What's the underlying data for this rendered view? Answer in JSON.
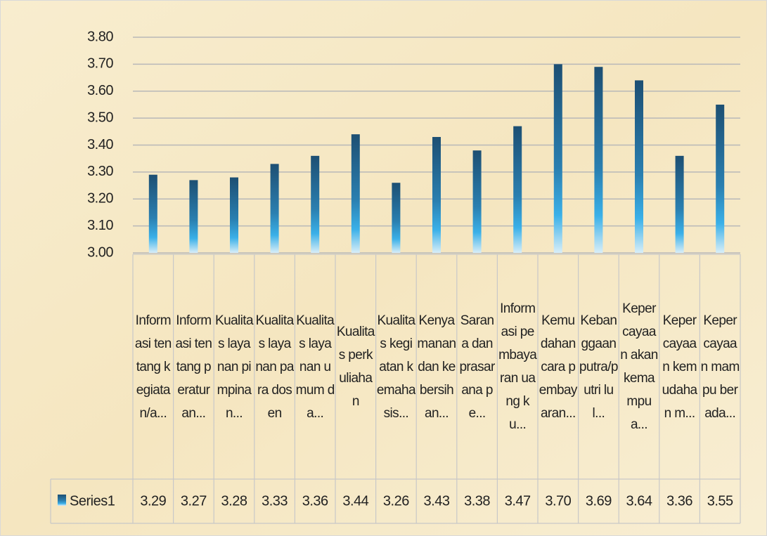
{
  "chart_data": {
    "type": "bar",
    "categories": [
      "Informasi tentang kegiatan/a...",
      "Informasi tentang peraturan...",
      "Kualitas layanan pimpinan...",
      "Kualitas layanan para dosen",
      "Kualitas layanan umum da...",
      "Kualitas perkuliahan",
      "Kualitas kegiatan kemahasis...",
      "Kenyamanan dan kebersihan...",
      "Sarana dan prasarana pe...",
      "Informasi pembayaran uang ku...",
      "Kemudahan cara pembayaran...",
      "Kebanggaan putra/putri lul...",
      "Kepercayaan akan kemampua...",
      "Kepercayaan kemudahan m...",
      "Kepercayaan mampu berada..."
    ],
    "series": [
      {
        "name": "Series1",
        "color": "#1f5a85",
        "values": [
          3.29,
          3.27,
          3.28,
          3.33,
          3.36,
          3.44,
          3.26,
          3.43,
          3.38,
          3.47,
          3.7,
          3.69,
          3.64,
          3.36,
          3.55
        ],
        "value_labels": [
          "3.29",
          "3.27",
          "3.28",
          "3.33",
          "3.36",
          "3.44",
          "3.26",
          "3.43",
          "3.38",
          "3.47",
          "3.70",
          "3.69",
          "3.64",
          "3.36",
          "3.55"
        ]
      }
    ],
    "ylim": [
      3.0,
      3.8
    ],
    "yticks": [
      {
        "value": 3.0,
        "label": "3.00"
      },
      {
        "value": 3.1,
        "label": "3.10"
      },
      {
        "value": 3.2,
        "label": "3.20"
      },
      {
        "value": 3.3,
        "label": "3.30"
      },
      {
        "value": 3.4,
        "label": "3.40"
      },
      {
        "value": 3.5,
        "label": "3.50"
      },
      {
        "value": 3.6,
        "label": "3.60"
      },
      {
        "value": 3.7,
        "label": "3.70"
      },
      {
        "value": 3.8,
        "label": "3.80"
      }
    ],
    "grid": true
  }
}
